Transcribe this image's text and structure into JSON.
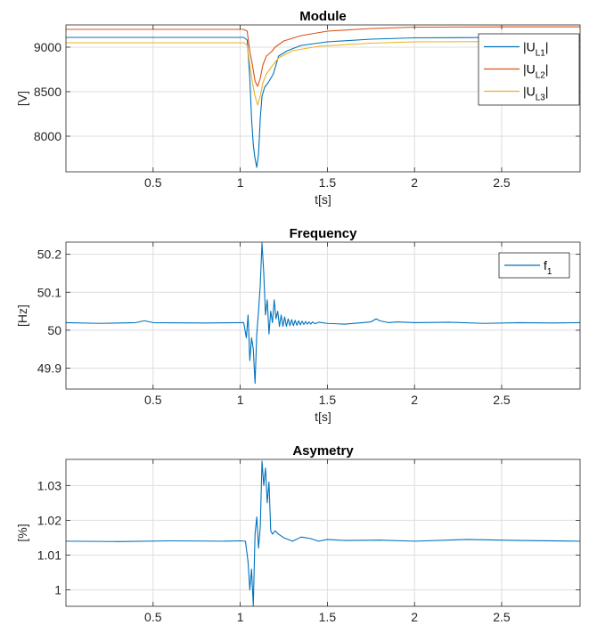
{
  "chart_data": [
    {
      "type": "line",
      "title": "Module",
      "xlabel": "t[s]",
      "ylabel": "[V]",
      "xlim": [
        0,
        2.95
      ],
      "ylim": [
        7600,
        9250
      ],
      "xticks": [
        0.5,
        1,
        1.5,
        2,
        2.5
      ],
      "yticks": [
        8000,
        8500,
        9000
      ],
      "xtick_labels": [
        "0.5",
        "1",
        "1.5",
        "2",
        "2.5"
      ],
      "ytick_labels": [
        "8000",
        "8500",
        "9000"
      ],
      "grid": true,
      "legend": "top-right",
      "series": [
        {
          "name": "|U",
          "sub": "L1",
          "suffix": "|",
          "color": "#0072BD",
          "points": [
            [
              0,
              9110
            ],
            [
              1.02,
              9110
            ],
            [
              1.04,
              9080
            ],
            [
              1.055,
              8650
            ],
            [
              1.065,
              8200
            ],
            [
              1.075,
              7900
            ],
            [
              1.085,
              7750
            ],
            [
              1.095,
              7650
            ],
            [
              1.105,
              7800
            ],
            [
              1.115,
              8200
            ],
            [
              1.125,
              8450
            ],
            [
              1.14,
              8550
            ],
            [
              1.16,
              8600
            ],
            [
              1.19,
              8700
            ],
            [
              1.22,
              8900
            ],
            [
              1.27,
              8960
            ],
            [
              1.35,
              9020
            ],
            [
              1.5,
              9060
            ],
            [
              1.75,
              9090
            ],
            [
              2.0,
              9105
            ],
            [
              2.5,
              9110
            ],
            [
              2.95,
              9110
            ]
          ]
        },
        {
          "name": "|U",
          "sub": "L2",
          "suffix": "|",
          "color": "#D95319",
          "points": [
            [
              0,
              9200
            ],
            [
              1.02,
              9200
            ],
            [
              1.04,
              9180
            ],
            [
              1.055,
              8950
            ],
            [
              1.07,
              8800
            ],
            [
              1.085,
              8620
            ],
            [
              1.1,
              8560
            ],
            [
              1.115,
              8650
            ],
            [
              1.13,
              8800
            ],
            [
              1.15,
              8900
            ],
            [
              1.18,
              8950
            ],
            [
              1.2,
              9000
            ],
            [
              1.25,
              9070
            ],
            [
              1.35,
              9130
            ],
            [
              1.5,
              9180
            ],
            [
              1.75,
              9210
            ],
            [
              2.0,
              9225
            ],
            [
              2.5,
              9228
            ],
            [
              2.95,
              9228
            ]
          ]
        },
        {
          "name": "|U",
          "sub": "L3",
          "suffix": "|",
          "color": "#EDB120",
          "points": [
            [
              0,
              9050
            ],
            [
              1.02,
              9050
            ],
            [
              1.04,
              9020
            ],
            [
              1.055,
              8800
            ],
            [
              1.07,
              8600
            ],
            [
              1.085,
              8450
            ],
            [
              1.1,
              8350
            ],
            [
              1.115,
              8450
            ],
            [
              1.13,
              8600
            ],
            [
              1.15,
              8700
            ],
            [
              1.18,
              8780
            ],
            [
              1.22,
              8880
            ],
            [
              1.3,
              8960
            ],
            [
              1.45,
              9010
            ],
            [
              1.75,
              9045
            ],
            [
              2.0,
              9060
            ],
            [
              2.5,
              9063
            ],
            [
              2.95,
              9063
            ]
          ]
        }
      ]
    },
    {
      "type": "line",
      "title": "Frequency",
      "xlabel": "t[s]",
      "ylabel": "[Hz]",
      "xlim": [
        0,
        2.95
      ],
      "ylim": [
        49.845,
        50.232
      ],
      "xticks": [
        0.5,
        1,
        1.5,
        2,
        2.5
      ],
      "yticks": [
        49.9,
        50,
        50.1,
        50.2
      ],
      "xtick_labels": [
        "0.5",
        "1",
        "1.5",
        "2",
        "2.5"
      ],
      "ytick_labels": [
        "49.9",
        "50",
        "50.1",
        "50.2"
      ],
      "grid": true,
      "legend": "top-right",
      "series": [
        {
          "name": "f",
          "sub": "1",
          "suffix": "",
          "color": "#0072BD",
          "points": [
            [
              0,
              50.02
            ],
            [
              0.2,
              50.018
            ],
            [
              0.4,
              50.02
            ],
            [
              0.45,
              50.025
            ],
            [
              0.5,
              50.02
            ],
            [
              0.8,
              50.019
            ],
            [
              1.0,
              50.02
            ],
            [
              1.02,
              50.02
            ],
            [
              1.035,
              49.98
            ],
            [
              1.045,
              50.04
            ],
            [
              1.055,
              49.92
            ],
            [
              1.065,
              49.98
            ],
            [
              1.075,
              49.95
            ],
            [
              1.085,
              49.86
            ],
            [
              1.095,
              49.99
            ],
            [
              1.105,
              50.05
            ],
            [
              1.115,
              50.12
            ],
            [
              1.125,
              50.23
            ],
            [
              1.135,
              50.15
            ],
            [
              1.145,
              50.04
            ],
            [
              1.155,
              50.08
            ],
            [
              1.165,
              49.99
            ],
            [
              1.175,
              50.05
            ],
            [
              1.185,
              50.02
            ],
            [
              1.195,
              50.08
            ],
            [
              1.205,
              50.03
            ],
            [
              1.215,
              50.05
            ],
            [
              1.225,
              50.01
            ],
            [
              1.235,
              50.04
            ],
            [
              1.245,
              50.01
            ],
            [
              1.255,
              50.035
            ],
            [
              1.265,
              50.01
            ],
            [
              1.275,
              50.03
            ],
            [
              1.285,
              50.012
            ],
            [
              1.295,
              50.028
            ],
            [
              1.305,
              50.012
            ],
            [
              1.315,
              50.026
            ],
            [
              1.325,
              50.013
            ],
            [
              1.335,
              50.025
            ],
            [
              1.345,
              50.014
            ],
            [
              1.355,
              50.024
            ],
            [
              1.365,
              50.015
            ],
            [
              1.375,
              50.023
            ],
            [
              1.385,
              50.016
            ],
            [
              1.395,
              50.022
            ],
            [
              1.405,
              50.016
            ],
            [
              1.415,
              50.022
            ],
            [
              1.43,
              50.017
            ],
            [
              1.45,
              50.021
            ],
            [
              1.5,
              50.018
            ],
            [
              1.6,
              50.016
            ],
            [
              1.7,
              50.02
            ],
            [
              1.75,
              50.022
            ],
            [
              1.78,
              50.03
            ],
            [
              1.8,
              50.025
            ],
            [
              1.85,
              50.02
            ],
            [
              1.9,
              50.022
            ],
            [
              2.0,
              50.02
            ],
            [
              2.2,
              50.021
            ],
            [
              2.4,
              50.018
            ],
            [
              2.6,
              50.02
            ],
            [
              2.8,
              50.019
            ],
            [
              2.95,
              50.02
            ]
          ]
        }
      ]
    },
    {
      "type": "line",
      "title": "Asymetry",
      "xlabel": "",
      "ylabel": "[%]",
      "xlim": [
        0,
        2.95
      ],
      "ylim": [
        0.9953,
        1.0375
      ],
      "xticks": [
        0.5,
        1,
        1.5,
        2,
        2.5
      ],
      "yticks": [
        1,
        1.01,
        1.02,
        1.03
      ],
      "xtick_labels": [
        "0.5",
        "1",
        "1.5",
        "2",
        "2.5"
      ],
      "ytick_labels": [
        "1",
        "1.01",
        "1.02",
        "1.03"
      ],
      "grid": true,
      "legend": "none",
      "series": [
        {
          "name": "",
          "sub": "",
          "suffix": "",
          "color": "#0072BD",
          "points": [
            [
              0,
              1.014
            ],
            [
              0.3,
              1.0139
            ],
            [
              0.6,
              1.0141
            ],
            [
              0.9,
              1.014
            ],
            [
              1.0,
              1.0141
            ],
            [
              1.03,
              1.014
            ],
            [
              1.045,
              1.008
            ],
            [
              1.055,
              1.0
            ],
            [
              1.065,
              1.006
            ],
            [
              1.075,
              0.9955
            ],
            [
              1.085,
              1.016
            ],
            [
              1.095,
              1.021
            ],
            [
              1.105,
              1.012
            ],
            [
              1.115,
              1.018
            ],
            [
              1.125,
              1.037
            ],
            [
              1.135,
              1.03
            ],
            [
              1.145,
              1.035
            ],
            [
              1.155,
              1.025
            ],
            [
              1.165,
              1.031
            ],
            [
              1.175,
              1.017
            ],
            [
              1.185,
              1.016
            ],
            [
              1.2,
              1.017
            ],
            [
              1.22,
              1.016
            ],
            [
              1.25,
              1.015
            ],
            [
              1.3,
              1.014
            ],
            [
              1.35,
              1.0152
            ],
            [
              1.4,
              1.0148
            ],
            [
              1.45,
              1.014
            ],
            [
              1.5,
              1.0145
            ],
            [
              1.6,
              1.0142
            ],
            [
              1.8,
              1.0143
            ],
            [
              2.0,
              1.014
            ],
            [
              2.3,
              1.0145
            ],
            [
              2.6,
              1.0142
            ],
            [
              2.95,
              1.014
            ]
          ]
        }
      ]
    }
  ]
}
